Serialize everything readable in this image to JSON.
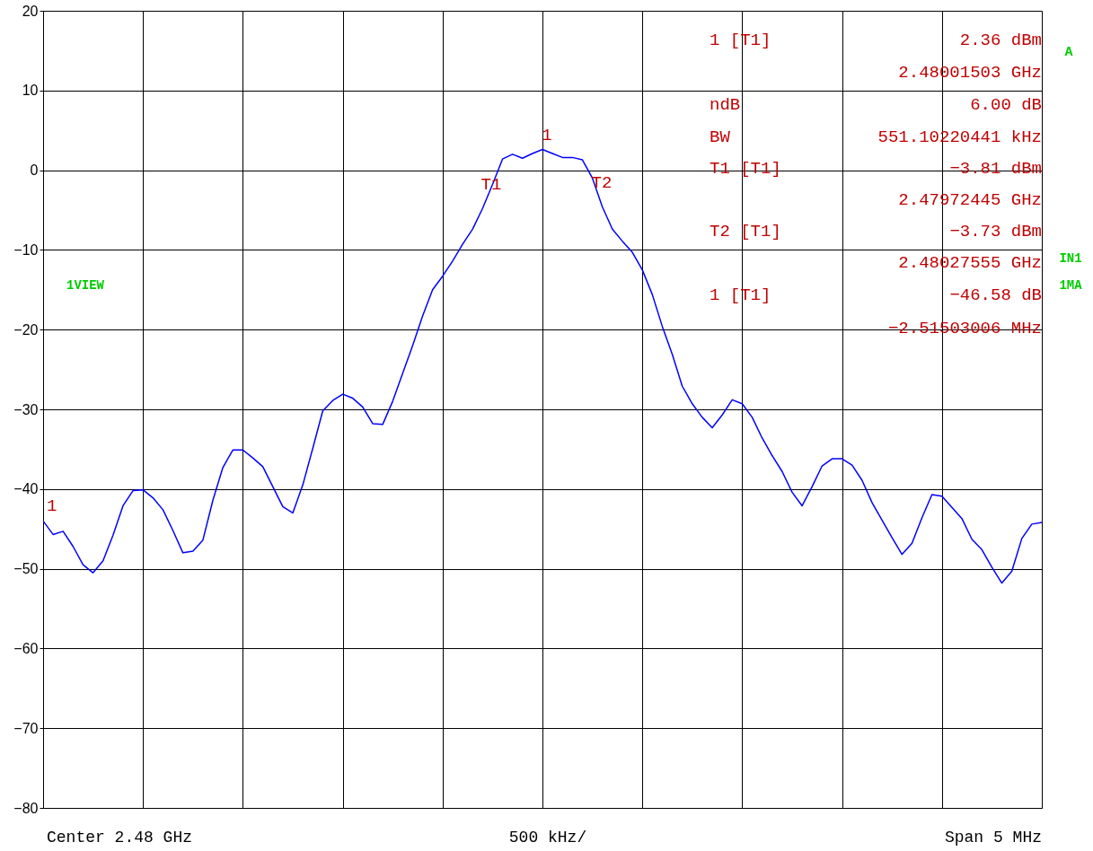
{
  "chart_data": {
    "type": "line",
    "categories": [
      null,
      null,
      null,
      null,
      null,
      null,
      null,
      null,
      null,
      null,
      null,
      null,
      null,
      null,
      null,
      null,
      null,
      null,
      null,
      null,
      null,
      null,
      null,
      null,
      null,
      null,
      null,
      null,
      null,
      null,
      null,
      null,
      null,
      null,
      null,
      null,
      null,
      null,
      null,
      null,
      null,
      null,
      null,
      null,
      null,
      null,
      null,
      null,
      null,
      null,
      null,
      null,
      null,
      null,
      null,
      null,
      null,
      null,
      null,
      null,
      null,
      null,
      null,
      null,
      null,
      null,
      null,
      null,
      null,
      null,
      null,
      null,
      null,
      null,
      null,
      null,
      null,
      null,
      null,
      null,
      null,
      null,
      null,
      null,
      null,
      null,
      null,
      null,
      null,
      null,
      null,
      null,
      null,
      null,
      null,
      null,
      null,
      null,
      null,
      null,
      null
    ],
    "ylim": [
      -80,
      20
    ],
    "yticks": [
      20,
      10,
      0,
      {
        "value": -10,
        "label": "−10"
      },
      {
        "value": -20,
        "label": "−20"
      },
      {
        "value": -30,
        "label": "−30"
      },
      {
        "value": -40,
        "label": "−40"
      },
      {
        "value": -50,
        "label": "−50"
      },
      {
        "value": -60,
        "label": "−60"
      },
      {
        "value": -70,
        "label": "−70"
      },
      {
        "value": -80,
        "label": "−80"
      }
    ],
    "grid": true,
    "tick_labels": "y",
    "series": [
      {
        "color": "#0000ff",
        "values": [
          -44.0,
          -45.7,
          -45.3,
          -47.2,
          -49.5,
          -50.5,
          -49.0,
          -45.8,
          -42.1,
          -40.2,
          -40.1,
          -41.1,
          -42.6,
          -45.2,
          -48.0,
          -47.8,
          -46.4,
          -41.4,
          -37.3,
          -35.1,
          -35.1,
          -36.1,
          -37.2,
          -39.7,
          -42.2,
          -43.0,
          -39.5,
          -34.9,
          -30.2,
          -28.9,
          -28.1,
          -28.6,
          -29.7,
          -31.8,
          -31.9,
          -29.0,
          -25.5,
          -22.0,
          -18.3,
          -15.0,
          -13.3,
          -11.4,
          -9.3,
          -7.4,
          -4.8,
          -1.8,
          1.4,
          2.0,
          1.5,
          2.1,
          2.6,
          2.1,
          1.6,
          1.6,
          1.3,
          -1.0,
          -4.6,
          -7.4,
          -8.9,
          -10.3,
          -12.5,
          -15.6,
          -19.6,
          -23.1,
          -27.1,
          -29.3,
          -31.0,
          -32.3,
          -30.7,
          -28.8,
          -29.3,
          -31.0,
          -33.6,
          -35.8,
          -37.8,
          -40.4,
          -42.1,
          -39.7,
          -37.1,
          -36.2,
          -36.2,
          -37.0,
          -38.9,
          -41.7,
          -43.9,
          -46.1,
          -48.2,
          -46.8,
          -43.6,
          -40.7,
          -40.9,
          -42.3,
          -43.7,
          -46.3,
          -47.6,
          -49.8,
          -51.8,
          -50.3,
          -46.2,
          -44.4,
          -44.2
        ]
      }
    ],
    "annotations": [
      "1",
      "T1",
      "T2",
      "1",
      "1 [T1]",
      "2.36 dBm",
      "2.48001503 GHz",
      "ndB",
      "6.00 dB",
      "BW",
      "551.10220441 kHz",
      "T1 [T1]",
      "−3.81 dBm",
      "2.47972445 GHz",
      "T2 [T1]",
      "−3.73 dBm",
      "2.48027555 GHz",
      "1 [T1]",
      "−46.58 dB",
      "−2.51503006 MHz",
      "Center 2.48 GHz",
      "500 kHz/",
      "Span 5 MHz",
      "A",
      "1VIEW",
      "IN1",
      "1MA"
    ]
  }
}
